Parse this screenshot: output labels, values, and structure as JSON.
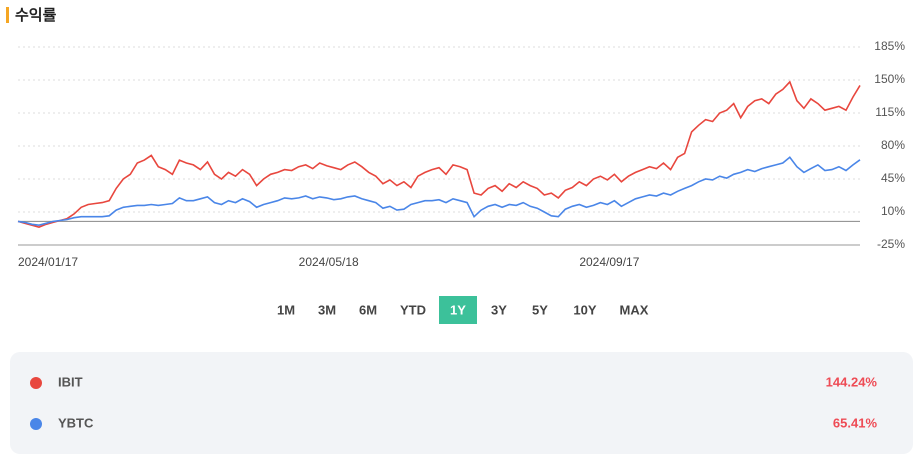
{
  "chart_data": {
    "type": "line",
    "title": "수익률",
    "categories": [
      "2024/01/17",
      null,
      null,
      null,
      null,
      null,
      null,
      null,
      null,
      null,
      null,
      null,
      null,
      null,
      null,
      null,
      null,
      null,
      null,
      null,
      null,
      null,
      null,
      null,
      null,
      null,
      null,
      null,
      null,
      null,
      null,
      null,
      null,
      null,
      null,
      null,
      null,
      null,
      null,
      null,
      "2024/05/18",
      null,
      null,
      null,
      null,
      null,
      null,
      null,
      null,
      null,
      null,
      null,
      null,
      null,
      null,
      null,
      null,
      null,
      null,
      null,
      null,
      null,
      null,
      null,
      null,
      null,
      null,
      null,
      null,
      null,
      null,
      null,
      null,
      null,
      null,
      null,
      null,
      null,
      null,
      null,
      "2024/09/17",
      null,
      null,
      null,
      null,
      null,
      null,
      null,
      null,
      null,
      null,
      null,
      null,
      null,
      null,
      null,
      null,
      null,
      null,
      null,
      null,
      null,
      null,
      null,
      null,
      null,
      null,
      null,
      null,
      null,
      null,
      null,
      null,
      null,
      null,
      null,
      null,
      null,
      null,
      null,
      null
    ],
    "ylim": [
      -25,
      185
    ],
    "yticks": [
      {
        "value": 185,
        "label": "185%"
      },
      {
        "value": 150,
        "label": "150%"
      },
      {
        "value": 115,
        "label": "115%"
      },
      {
        "value": 80,
        "label": "80%"
      },
      {
        "value": 45,
        "label": "45%"
      },
      {
        "value": 10,
        "label": "10%"
      },
      {
        "value": -25,
        "label": "-25%"
      }
    ],
    "grid": true,
    "series": [
      {
        "name": "IBIT",
        "color": "#e8473e",
        "values": [
          0,
          -2,
          -4,
          -6,
          -3,
          -1,
          1,
          3,
          8,
          15,
          18,
          19,
          20,
          22,
          35,
          45,
          50,
          62,
          65,
          70,
          58,
          55,
          50,
          65,
          62,
          60,
          55,
          63,
          50,
          45,
          52,
          48,
          55,
          50,
          38,
          45,
          50,
          52,
          55,
          54,
          58,
          60,
          56,
          62,
          59,
          57,
          55,
          60,
          63,
          58,
          52,
          48,
          40,
          44,
          38,
          42,
          36,
          48,
          52,
          55,
          57,
          50,
          60,
          58,
          55,
          30,
          28,
          35,
          38,
          32,
          40,
          36,
          42,
          38,
          35,
          28,
          30,
          25,
          33,
          36,
          42,
          38,
          45,
          48,
          44,
          50,
          42,
          48,
          52,
          55,
          58,
          56,
          62,
          55,
          68,
          72,
          95,
          102,
          108,
          106,
          115,
          118,
          125,
          110,
          122,
          128,
          130,
          125,
          135,
          140,
          148,
          128,
          120,
          130,
          125,
          118,
          120,
          122,
          118,
          132,
          144.24
        ],
        "value_labels": [
          null,
          null,
          null,
          null,
          null,
          null,
          null,
          null,
          null,
          null,
          null,
          null,
          null,
          null,
          null,
          null,
          null,
          null,
          null,
          null,
          null,
          null,
          null,
          null,
          null,
          null,
          null,
          null,
          null,
          null,
          null,
          null,
          null,
          null,
          null,
          null,
          null,
          null,
          null,
          null,
          null,
          null,
          null,
          null,
          null,
          null,
          null,
          null,
          null,
          null,
          null,
          null,
          null,
          null,
          null,
          null,
          null,
          null,
          null,
          null,
          null,
          null,
          null,
          null,
          null,
          null,
          null,
          null,
          null,
          null,
          null,
          null,
          null,
          null,
          null,
          null,
          null,
          null,
          null,
          null,
          null,
          null,
          null,
          null,
          null,
          null,
          null,
          null,
          null,
          null,
          null,
          null,
          null,
          null,
          null,
          null,
          null,
          null,
          null,
          null,
          null,
          null,
          null,
          null,
          null,
          null,
          null,
          null,
          null,
          null,
          null,
          null,
          null,
          null,
          null,
          null,
          null,
          null,
          null,
          null,
          "144.24%"
        ]
      },
      {
        "name": "YBTC",
        "color": "#4a86e8",
        "values": [
          0,
          -1,
          -3,
          -4,
          -2,
          0,
          1,
          2,
          4,
          5,
          5,
          5,
          5,
          6,
          12,
          15,
          16,
          17,
          17,
          18,
          17,
          18,
          19,
          25,
          22,
          22,
          24,
          26,
          20,
          18,
          22,
          20,
          24,
          21,
          15,
          18,
          20,
          22,
          25,
          24,
          25,
          27,
          24,
          26,
          25,
          23,
          24,
          26,
          27,
          24,
          22,
          20,
          14,
          16,
          12,
          13,
          18,
          20,
          22,
          22,
          23,
          20,
          24,
          22,
          20,
          5,
          12,
          16,
          18,
          15,
          18,
          17,
          20,
          16,
          14,
          10,
          6,
          5,
          13,
          16,
          18,
          15,
          17,
          20,
          18,
          22,
          16,
          20,
          24,
          26,
          28,
          27,
          30,
          28,
          32,
          35,
          38,
          42,
          45,
          44,
          48,
          46,
          50,
          52,
          55,
          53,
          56,
          58,
          60,
          62,
          68,
          58,
          52,
          56,
          60,
          54,
          55,
          58,
          54,
          60,
          65.41
        ],
        "value_labels": [
          null,
          null,
          null,
          null,
          null,
          null,
          null,
          null,
          null,
          null,
          null,
          null,
          null,
          null,
          null,
          null,
          null,
          null,
          null,
          null,
          null,
          null,
          null,
          null,
          null,
          null,
          null,
          null,
          null,
          null,
          null,
          null,
          null,
          null,
          null,
          null,
          null,
          null,
          null,
          null,
          null,
          null,
          null,
          null,
          null,
          null,
          null,
          null,
          null,
          null,
          null,
          null,
          null,
          null,
          null,
          null,
          null,
          null,
          null,
          null,
          null,
          null,
          null,
          null,
          null,
          null,
          null,
          null,
          null,
          null,
          null,
          null,
          null,
          null,
          null,
          null,
          null,
          null,
          null,
          null,
          null,
          null,
          null,
          null,
          null,
          null,
          null,
          null,
          null,
          null,
          null,
          null,
          null,
          null,
          null,
          null,
          null,
          null,
          null,
          null,
          null,
          null,
          null,
          null,
          null,
          null,
          null,
          null,
          null,
          null,
          null,
          null,
          null,
          null,
          null,
          null,
          null,
          null,
          null,
          null,
          "65.41%"
        ]
      }
    ]
  },
  "range_buttons": {
    "items": [
      "1M",
      "3M",
      "6M",
      "YTD",
      "1Y",
      "3Y",
      "5Y",
      "10Y",
      "MAX"
    ],
    "active": "1Y"
  }
}
